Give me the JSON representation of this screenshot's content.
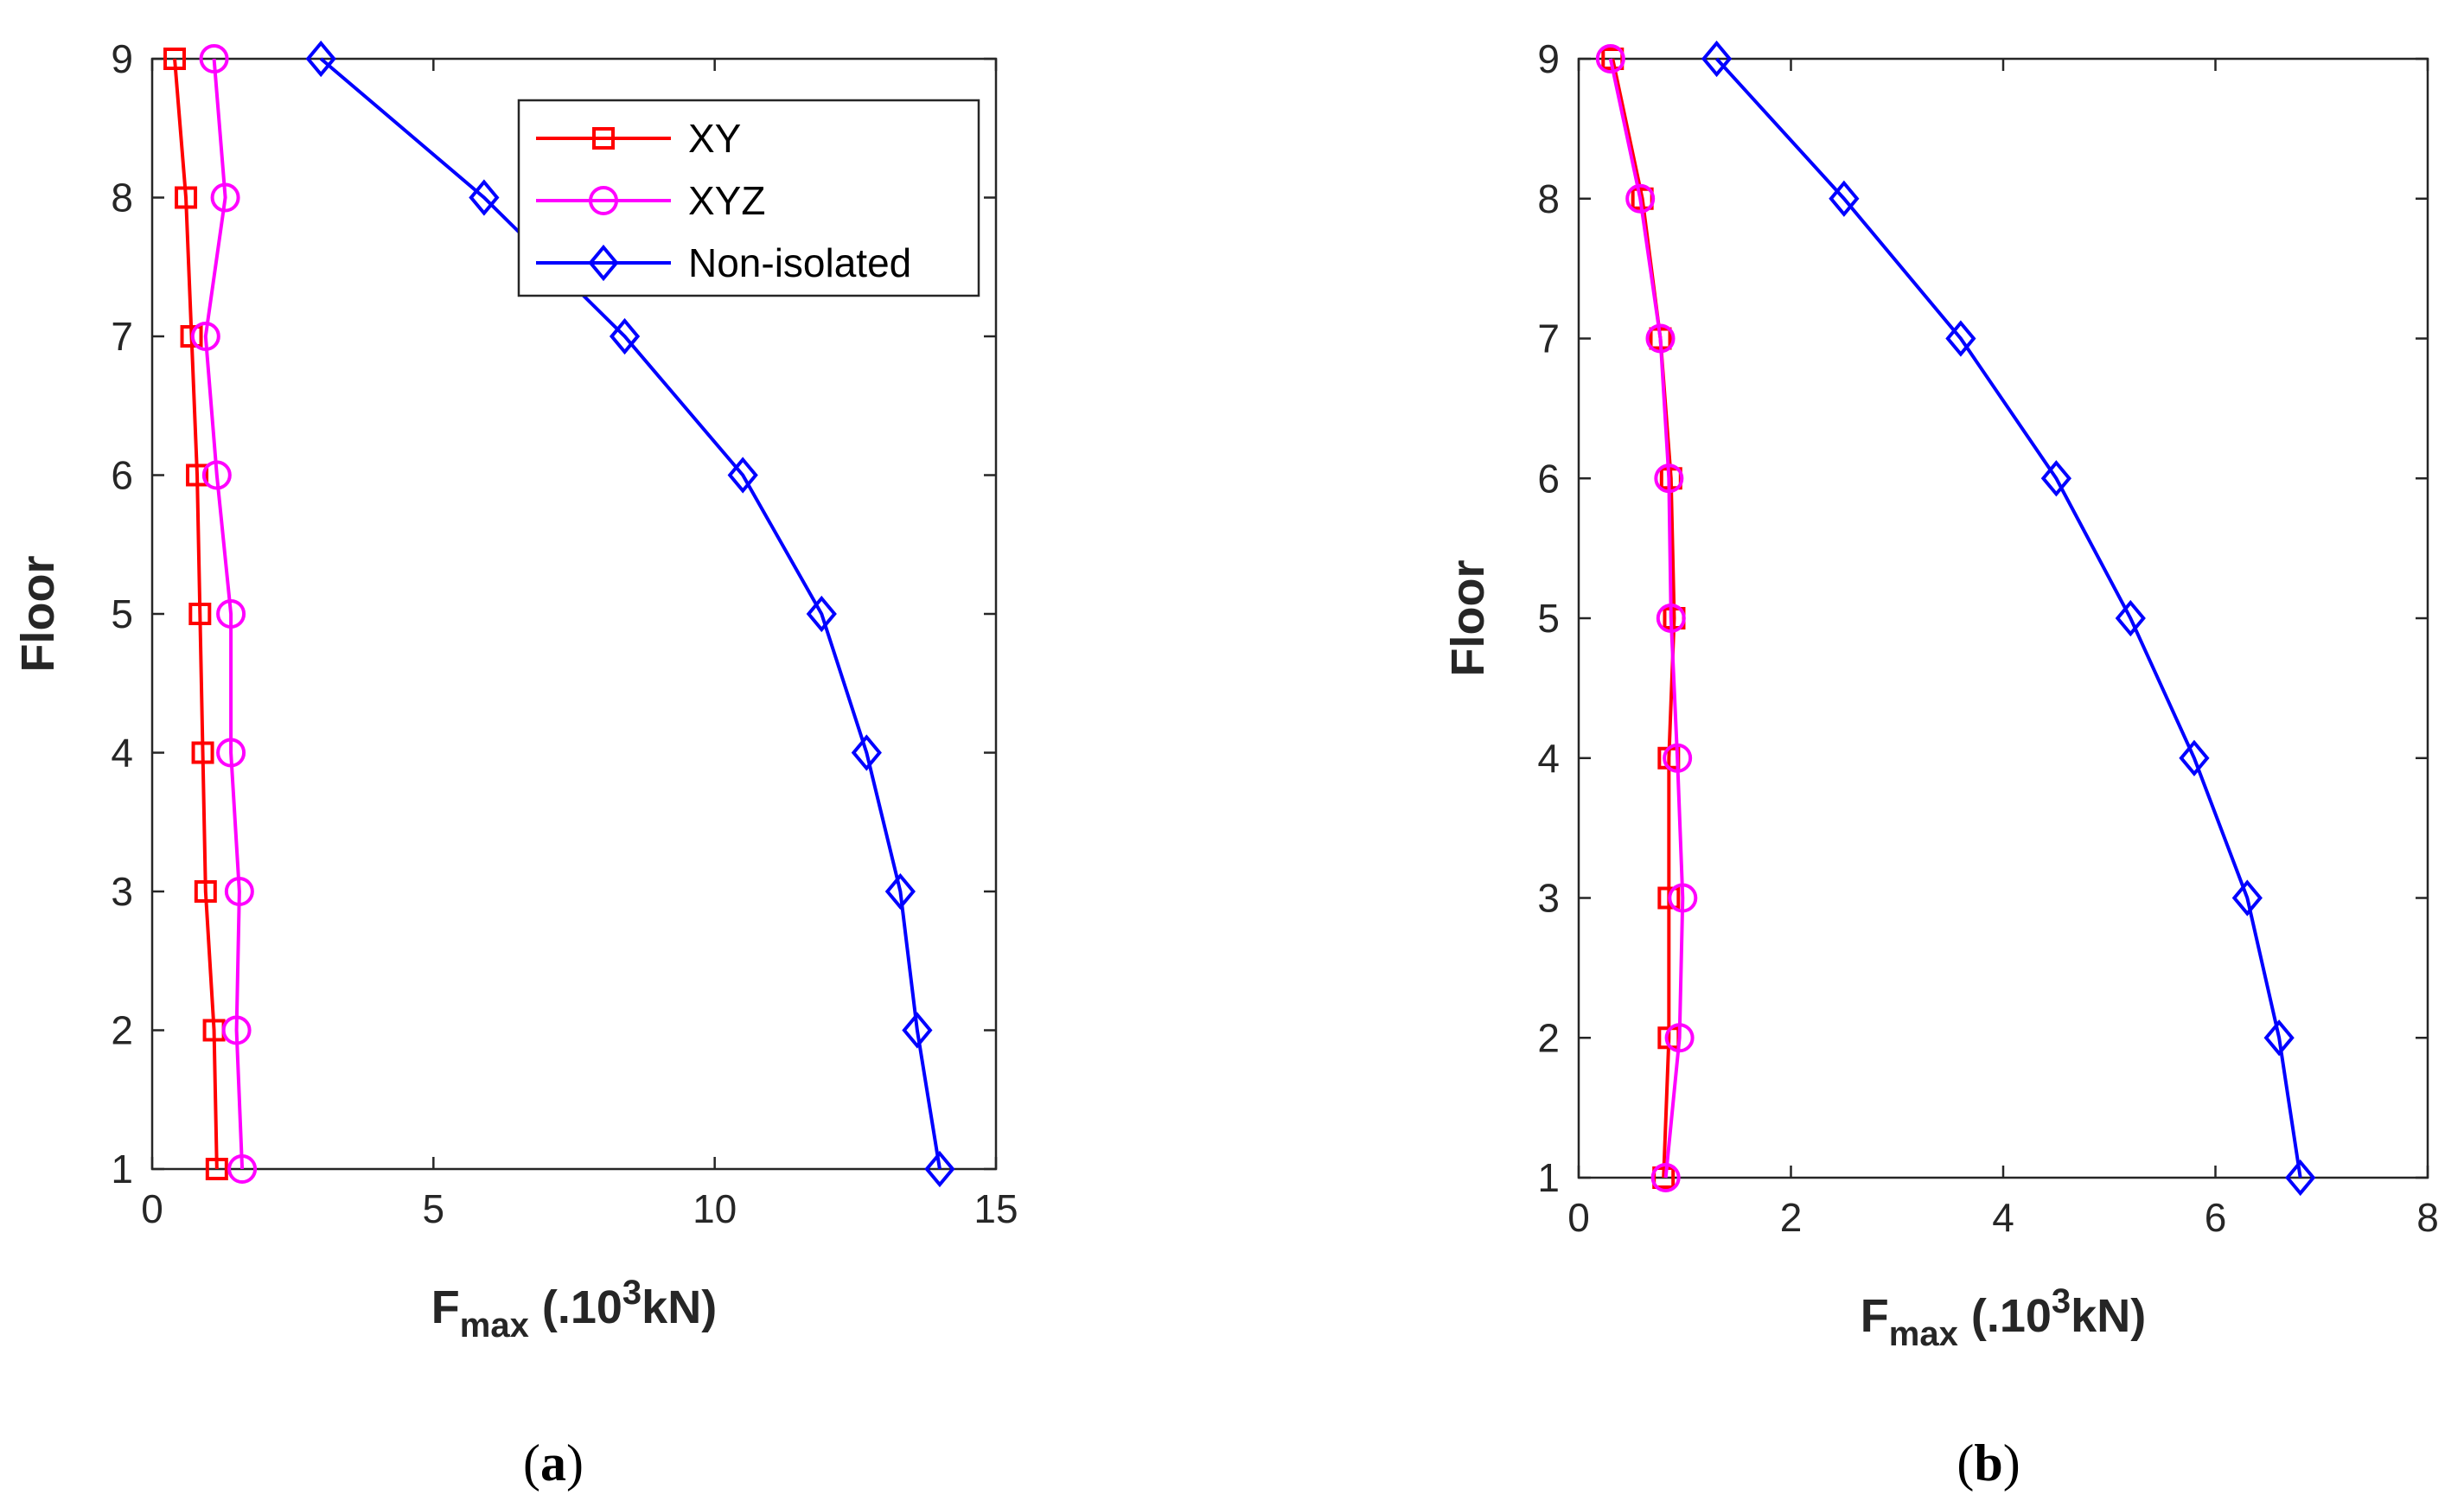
{
  "chart_data": [
    {
      "type": "line",
      "caption_letter": "a",
      "xlabel_main": "F",
      "xlabel_sub": "max",
      "xlabel_prefix": " (.10",
      "xlabel_sup": "3",
      "xlabel_suffix": "kN)",
      "ylabel": "Floor",
      "xlim": [
        0,
        15
      ],
      "ylim": [
        1,
        9
      ],
      "xticks": [
        0,
        5,
        10,
        15
      ],
      "yticks": [
        1,
        2,
        3,
        4,
        5,
        6,
        7,
        8,
        9
      ],
      "legend_position": "top-right",
      "series": [
        {
          "name": "XY",
          "color": "#ff0000",
          "marker": "square",
          "x": [
            1.15,
            1.1,
            0.95,
            0.9,
            0.85,
            0.8,
            0.7,
            0.6,
            0.4
          ],
          "y": [
            1,
            2,
            3,
            4,
            5,
            6,
            7,
            8,
            9
          ]
        },
        {
          "name": "XYZ",
          "color": "#ff00ff",
          "marker": "circle",
          "x": [
            1.6,
            1.5,
            1.55,
            1.4,
            1.4,
            1.15,
            0.95,
            1.3,
            1.1
          ],
          "y": [
            1,
            2,
            3,
            4,
            5,
            6,
            7,
            8,
            9
          ]
        },
        {
          "name": "Non-isolated",
          "color": "#0000ff",
          "marker": "diamond",
          "x": [
            14.0,
            13.6,
            13.3,
            12.7,
            11.9,
            10.5,
            8.4,
            5.9,
            3.0
          ],
          "y": [
            1,
            2,
            3,
            4,
            5,
            6,
            7,
            8,
            9
          ]
        }
      ]
    },
    {
      "type": "line",
      "caption_letter": "b",
      "xlabel_main": "F",
      "xlabel_sub": "max",
      "xlabel_prefix": " (.10",
      "xlabel_sup": "3",
      "xlabel_suffix": "kN)",
      "ylabel": "Floor",
      "xlim": [
        0,
        8
      ],
      "ylim": [
        1,
        9
      ],
      "xticks": [
        0,
        2,
        4,
        6,
        8
      ],
      "yticks": [
        1,
        2,
        3,
        4,
        5,
        6,
        7,
        8,
        9
      ],
      "legend_position": "none",
      "series": [
        {
          "name": "XY",
          "color": "#ff0000",
          "marker": "square",
          "x": [
            0.8,
            0.85,
            0.85,
            0.85,
            0.9,
            0.87,
            0.77,
            0.6,
            0.32
          ],
          "y": [
            1,
            2,
            3,
            4,
            5,
            6,
            7,
            8,
            9
          ]
        },
        {
          "name": "XYZ",
          "color": "#ff00ff",
          "marker": "circle",
          "x": [
            0.82,
            0.95,
            0.98,
            0.93,
            0.87,
            0.85,
            0.77,
            0.58,
            0.3
          ],
          "y": [
            1,
            2,
            3,
            4,
            5,
            6,
            7,
            8,
            9
          ]
        },
        {
          "name": "Non-isolated",
          "color": "#0000ff",
          "marker": "diamond",
          "x": [
            6.8,
            6.6,
            6.3,
            5.8,
            5.2,
            4.5,
            3.6,
            2.5,
            1.3
          ],
          "y": [
            1,
            2,
            3,
            4,
            5,
            6,
            7,
            8,
            9
          ]
        }
      ]
    }
  ]
}
